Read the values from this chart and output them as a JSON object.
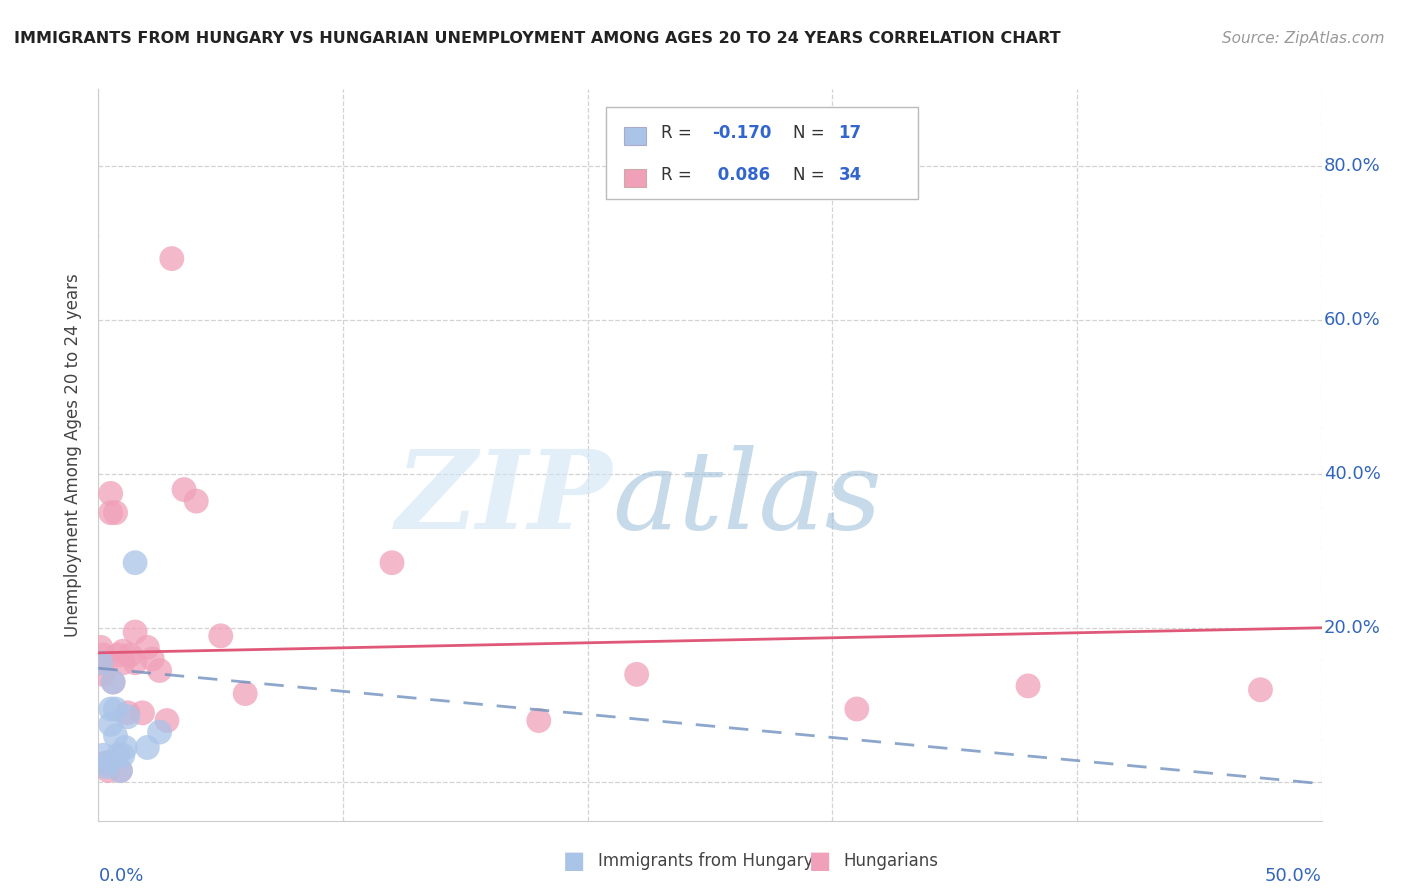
{
  "title": "IMMIGRANTS FROM HUNGARY VS HUNGARIAN UNEMPLOYMENT AMONG AGES 20 TO 24 YEARS CORRELATION CHART",
  "source": "Source: ZipAtlas.com",
  "ylabel": "Unemployment Among Ages 20 to 24 years",
  "blue_color": "#aac4e8",
  "blue_line_color": "#7090c0",
  "pink_color": "#f0a0b8",
  "pink_line_color": "#e05878",
  "legend_r1": "-0.170",
  "legend_n1": "17",
  "legend_r2": "0.086",
  "legend_n2": "34",
  "xlim": [
    0.0,
    0.5
  ],
  "ylim": [
    -0.05,
    0.9
  ],
  "xticks": [
    0.0,
    0.1,
    0.2,
    0.3,
    0.4,
    0.5
  ],
  "yticks_right": [
    0.0,
    0.2,
    0.4,
    0.6,
    0.8
  ],
  "blue_scatter_x": [
    0.001,
    0.002,
    0.003,
    0.004,
    0.005,
    0.005,
    0.006,
    0.007,
    0.007,
    0.008,
    0.009,
    0.01,
    0.011,
    0.012,
    0.015,
    0.02,
    0.025
  ],
  "blue_scatter_y": [
    0.155,
    0.035,
    0.02,
    0.025,
    0.075,
    0.095,
    0.13,
    0.06,
    0.095,
    0.035,
    0.015,
    0.035,
    0.045,
    0.085,
    0.285,
    0.045,
    0.065
  ],
  "pink_scatter_x": [
    0.001,
    0.001,
    0.002,
    0.002,
    0.003,
    0.004,
    0.005,
    0.005,
    0.006,
    0.007,
    0.008,
    0.009,
    0.01,
    0.01,
    0.012,
    0.013,
    0.015,
    0.015,
    0.018,
    0.02,
    0.022,
    0.025,
    0.028,
    0.03,
    0.035,
    0.04,
    0.05,
    0.06,
    0.12,
    0.18,
    0.22,
    0.31,
    0.38,
    0.475
  ],
  "pink_scatter_y": [
    0.175,
    0.155,
    0.14,
    0.165,
    0.025,
    0.015,
    0.375,
    0.35,
    0.13,
    0.35,
    0.165,
    0.015,
    0.17,
    0.155,
    0.09,
    0.165,
    0.195,
    0.155,
    0.09,
    0.175,
    0.16,
    0.145,
    0.08,
    0.68,
    0.38,
    0.365,
    0.19,
    0.115,
    0.285,
    0.08,
    0.14,
    0.095,
    0.125,
    0.12
  ],
  "blue_line_x": [
    0.0,
    0.5
  ],
  "blue_line_y_start": 0.148,
  "blue_line_slope": -0.3,
  "pink_line_y_start": 0.168,
  "pink_line_slope": 0.065
}
